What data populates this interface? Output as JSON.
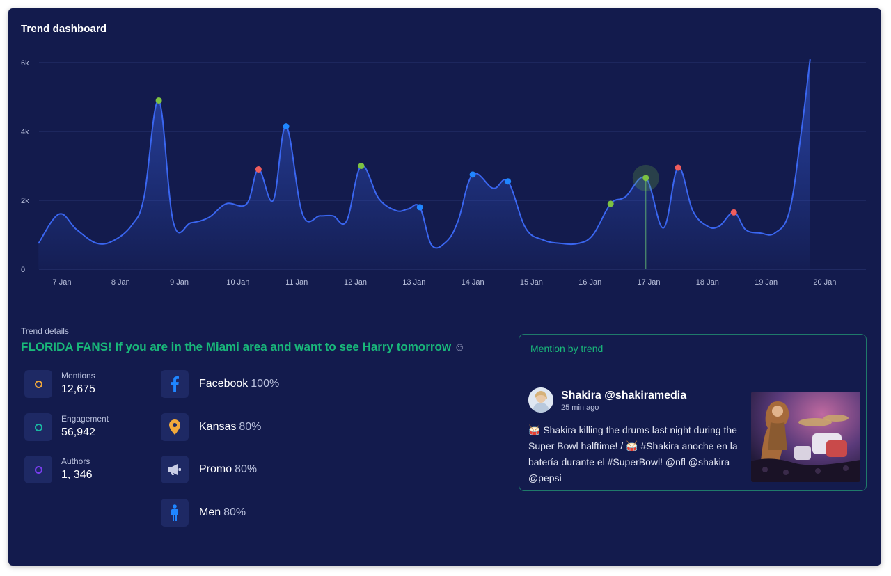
{
  "dashboard": {
    "title": "Trend dashboard"
  },
  "colors": {
    "panel_bg": "#131b4d",
    "line": "#3a66f0",
    "green_point": "#7dc242",
    "blue_point": "#1f86ff",
    "red_point": "#ef5d5d",
    "accent_green": "#19b87a",
    "mentions_ring": "#f2a93b",
    "engagement_ring": "#19b8a2",
    "authors_ring": "#7a3df0",
    "facebook": "#1f86ff",
    "kansas": "#f2a93b",
    "promo": "#c9cde6",
    "men": "#1f86ff"
  },
  "chart_data": {
    "type": "line",
    "title": "Trend dashboard",
    "xlabel": "",
    "ylabel": "",
    "ylim": [
      0,
      6000
    ],
    "xlim": [
      6.6,
      20.6
    ],
    "y_ticks": [
      {
        "value": 0,
        "label": "0"
      },
      {
        "value": 2000,
        "label": "2k"
      },
      {
        "value": 4000,
        "label": "4k"
      },
      {
        "value": 6000,
        "label": "6k"
      }
    ],
    "x_ticks": [
      {
        "value": 7,
        "label": "7 Jan"
      },
      {
        "value": 8,
        "label": "8 Jan"
      },
      {
        "value": 9,
        "label": "9 Jan"
      },
      {
        "value": 10,
        "label": "10 Jan"
      },
      {
        "value": 11,
        "label": "11 Jan"
      },
      {
        "value": 12,
        "label": "12 Jan"
      },
      {
        "value": 13,
        "label": "13 Jan"
      },
      {
        "value": 14,
        "label": "14 Jan"
      },
      {
        "value": 15,
        "label": "15 Jan"
      },
      {
        "value": 16,
        "label": "16 Jan"
      },
      {
        "value": 17,
        "label": "17 Jan"
      },
      {
        "value": 18,
        "label": "18 Jan"
      },
      {
        "value": 19,
        "label": "19 Jan"
      },
      {
        "value": 20,
        "label": "20 Jan"
      }
    ],
    "grid": true,
    "series": [
      {
        "name": "Mentions",
        "points": [
          [
            6.6,
            750
          ],
          [
            6.95,
            1600
          ],
          [
            7.25,
            1150
          ],
          [
            7.6,
            750
          ],
          [
            7.9,
            850
          ],
          [
            8.2,
            1300
          ],
          [
            8.4,
            2100
          ],
          [
            8.65,
            4900
          ],
          [
            8.9,
            1350
          ],
          [
            9.2,
            1350
          ],
          [
            9.5,
            1500
          ],
          [
            9.8,
            1900
          ],
          [
            10.15,
            1900
          ],
          [
            10.35,
            2900
          ],
          [
            10.6,
            2000
          ],
          [
            10.82,
            4150
          ],
          [
            11.1,
            1600
          ],
          [
            11.4,
            1550
          ],
          [
            11.62,
            1550
          ],
          [
            11.85,
            1400
          ],
          [
            12.1,
            3000
          ],
          [
            12.4,
            2050
          ],
          [
            12.7,
            1700
          ],
          [
            12.9,
            1750
          ],
          [
            13.1,
            1800
          ],
          [
            13.3,
            700
          ],
          [
            13.55,
            800
          ],
          [
            13.75,
            1400
          ],
          [
            14.0,
            2750
          ],
          [
            14.35,
            2350
          ],
          [
            14.6,
            2550
          ],
          [
            14.9,
            1200
          ],
          [
            15.2,
            850
          ],
          [
            15.5,
            750
          ],
          [
            15.8,
            750
          ],
          [
            16.05,
            1000
          ],
          [
            16.35,
            1900
          ],
          [
            16.6,
            2100
          ],
          [
            16.95,
            2650
          ],
          [
            17.25,
            1200
          ],
          [
            17.5,
            2950
          ],
          [
            17.75,
            1700
          ],
          [
            18.0,
            1250
          ],
          [
            18.2,
            1250
          ],
          [
            18.45,
            1650
          ],
          [
            18.65,
            1150
          ],
          [
            18.9,
            1050
          ],
          [
            19.15,
            1050
          ],
          [
            19.4,
            1700
          ],
          [
            19.6,
            4000
          ],
          [
            19.75,
            6100
          ]
        ]
      }
    ],
    "highlights": [
      {
        "x": 8.65,
        "y": 4900,
        "color": "green"
      },
      {
        "x": 10.35,
        "y": 2900,
        "color": "red"
      },
      {
        "x": 10.82,
        "y": 4150,
        "color": "blue"
      },
      {
        "x": 12.1,
        "y": 3000,
        "color": "green"
      },
      {
        "x": 13.1,
        "y": 1800,
        "color": "blue"
      },
      {
        "x": 14.0,
        "y": 2750,
        "color": "blue"
      },
      {
        "x": 14.6,
        "y": 2550,
        "color": "blue"
      },
      {
        "x": 16.35,
        "y": 1900,
        "color": "green"
      },
      {
        "x": 16.95,
        "y": 2650,
        "color": "green",
        "selected": true
      },
      {
        "x": 17.5,
        "y": 2950,
        "color": "red"
      },
      {
        "x": 18.45,
        "y": 1650,
        "color": "red"
      }
    ]
  },
  "details": {
    "label": "Trend details",
    "headline": "FLORIDA FANS! If you are in the Miami area and want to see Harry tomorrow",
    "smiley": "☺",
    "metrics": [
      {
        "label": "Mentions",
        "value": "12,675"
      },
      {
        "label": "Engagement",
        "value": "56,942"
      },
      {
        "label": "Authors",
        "value": "1, 346"
      }
    ],
    "stats": [
      {
        "name": "Facebook",
        "percent": "100%",
        "icon": "facebook-icon"
      },
      {
        "name": "Kansas",
        "percent": "80%",
        "icon": "location-pin-icon"
      },
      {
        "name": "Promo",
        "percent": "80%",
        "icon": "megaphone-icon"
      },
      {
        "name": "Men",
        "percent": "80%",
        "icon": "man-icon"
      }
    ]
  },
  "mention": {
    "header": "Mention by trend",
    "author": "Shakira @shakiramedia",
    "time_ago": "25 min ago",
    "text": "🥁 Shakira killing the drums last night during the Super Bowl halftime! / 🥁 #Shakira anoche en la batería durante el #SuperBowl! @nfl @shakira @pepsi"
  }
}
